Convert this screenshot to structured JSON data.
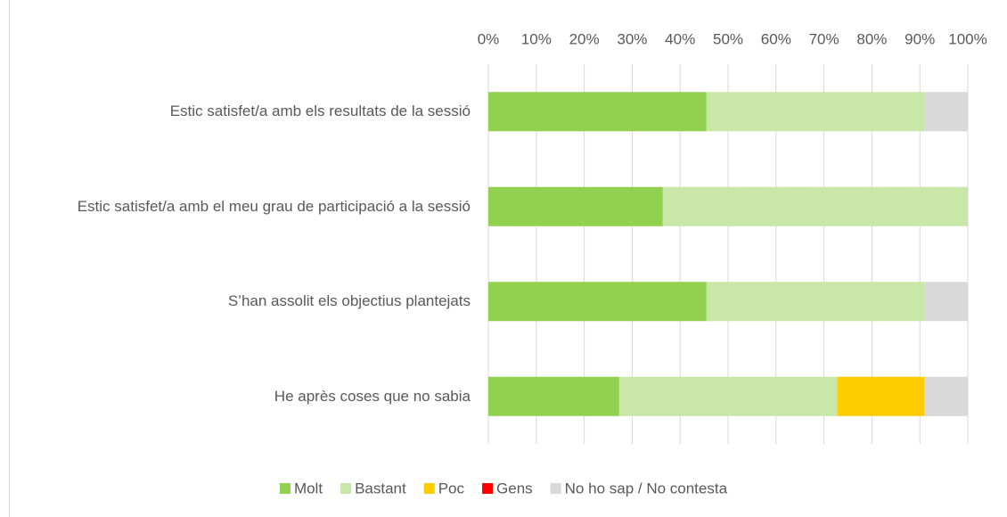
{
  "chart_data": {
    "type": "stacked-barh",
    "categories": [
      "Estic satisfet/a amb els resultats de la sessió",
      "Estic satisfet/a amb el meu grau de participació a la sessió",
      "S’han assolit els objectius plantejats",
      "He après coses que no sabia"
    ],
    "series": [
      {
        "name": "Molt",
        "color": "#92d050",
        "values": [
          45.5,
          36.4,
          45.5,
          27.3
        ]
      },
      {
        "name": "Bastant",
        "color": "#c9e7a7",
        "values": [
          45.5,
          63.6,
          45.5,
          45.5
        ]
      },
      {
        "name": "Poc",
        "color": "#ffcc00",
        "values": [
          0,
          0,
          0,
          18.2
        ]
      },
      {
        "name": "Gens",
        "color": "#ff0000",
        "values": [
          0,
          0,
          0,
          0
        ]
      },
      {
        "name": "No ho sap / No contesta",
        "color": "#d9d9d9",
        "values": [
          9.0,
          0,
          9.0,
          9.0
        ]
      }
    ],
    "xlim": [
      0,
      100
    ],
    "xticks": [
      {
        "value": 0,
        "label": "0%"
      },
      {
        "value": 10,
        "label": "10%"
      },
      {
        "value": 20,
        "label": "20%"
      },
      {
        "value": 30,
        "label": "30%"
      },
      {
        "value": 40,
        "label": "40%"
      },
      {
        "value": 50,
        "label": "50%"
      },
      {
        "value": 60,
        "label": "60%"
      },
      {
        "value": 70,
        "label": "70%"
      },
      {
        "value": 80,
        "label": "80%"
      },
      {
        "value": 90,
        "label": "90%"
      },
      {
        "value": 100,
        "label": "100%"
      }
    ],
    "grid": true,
    "legend": "bottom"
  }
}
